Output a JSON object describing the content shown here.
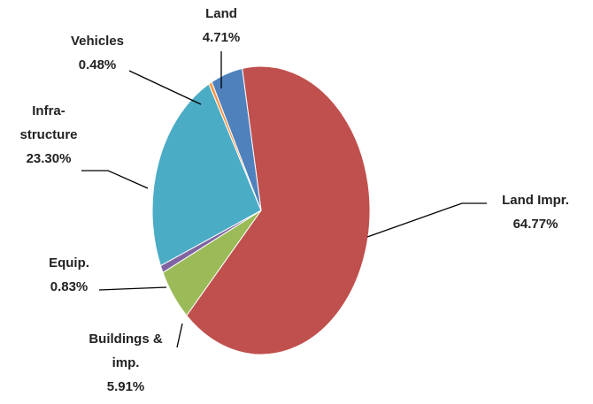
{
  "chart_data": {
    "type": "pie",
    "categories": [
      "Land Impr.",
      "Buildings &\nimp.",
      "Equip.",
      "Infra-\nstructure",
      "Vehicles",
      "Land"
    ],
    "values": [
      64.77,
      5.91,
      0.83,
      23.3,
      0.48,
      4.71
    ],
    "value_labels": [
      "64.77%",
      "5.91%",
      "0.83%",
      "23.30%",
      "0.48%",
      "4.71%"
    ],
    "colors": [
      "#c0504d",
      "#9bbb59",
      "#8064a2",
      "#4bacc6",
      "#f79646",
      "#4f81bd"
    ]
  }
}
